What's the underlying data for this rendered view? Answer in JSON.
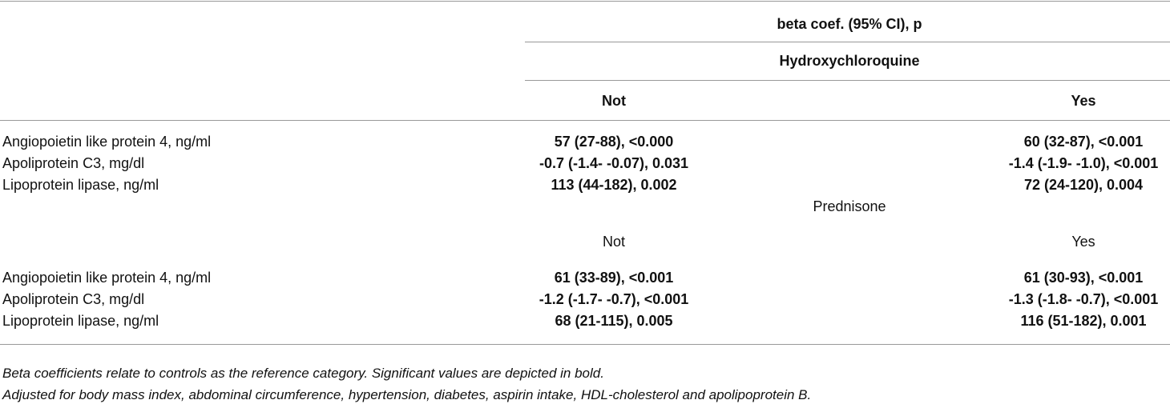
{
  "header": {
    "title": "beta coef. (95% CI), p"
  },
  "sections": [
    {
      "group": "Hydroxychloroquine",
      "columns": [
        "Not",
        "Yes"
      ],
      "rows": [
        {
          "label": "Angiopoietin like protein 4, ng/ml",
          "values": [
            "57 (27-88), <0.000",
            "60 (32-87), <0.001"
          ]
        },
        {
          "label": "Apoliprotein C3, mg/dl",
          "values": [
            "-0.7 (-1.4- -0.07), 0.031",
            "-1.4 (-1.9- -1.0), <0.001"
          ]
        },
        {
          "label": "Lipoprotein lipase, ng/ml",
          "values": [
            "113 (44-182), 0.002",
            "72 (24-120), 0.004"
          ]
        }
      ]
    },
    {
      "group": "Prednisone",
      "columns": [
        "Not",
        "Yes"
      ],
      "rows": [
        {
          "label": "Angiopoietin like protein 4, ng/ml",
          "values": [
            "61 (33-89), <0.001",
            "61 (30-93), <0.001"
          ]
        },
        {
          "label": "Apoliprotein C3, mg/dl",
          "values": [
            "-1.2 (-1.7- -0.7), <0.001",
            "-1.3 (-1.8- -0.7), <0.001"
          ]
        },
        {
          "label": "Lipoprotein lipase, ng/ml",
          "values": [
            "68 (21-115), 0.005",
            "116 (51-182), 0.001"
          ]
        }
      ]
    }
  ],
  "footnotes": [
    "Beta coefficients relate to controls as the reference category. Significant values are depicted in bold.",
    "Adjusted for body mass index, abdominal circumference, hypertension, diabetes, aspirin intake, HDL-cholesterol and apolipoprotein B."
  ]
}
